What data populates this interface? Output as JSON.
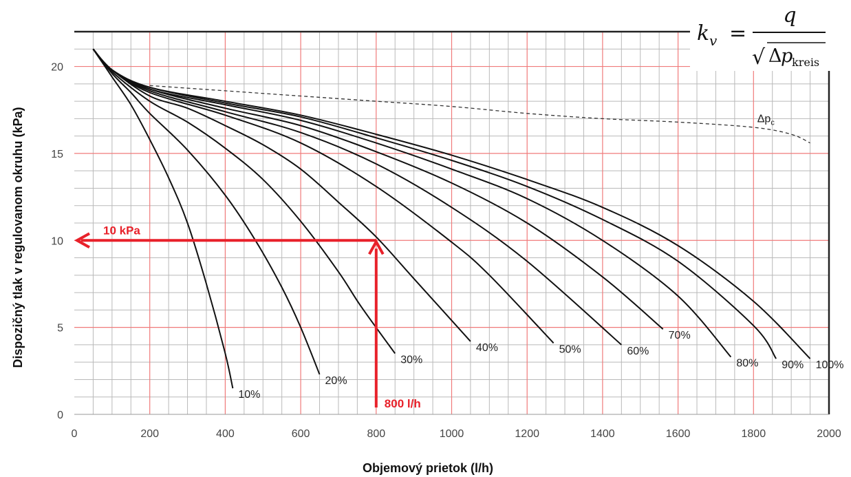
{
  "chart_data": {
    "type": "line",
    "title": "",
    "xlabel": "Objemový prietok (l/h)",
    "ylabel": "Dispozičný tlak v regulovanom okruhu (kPa)",
    "xlim": [
      0,
      2000
    ],
    "ylim": [
      0,
      22
    ],
    "x_ticks": [
      "0",
      "200",
      "400",
      "600",
      "800",
      "1000",
      "1200",
      "1400",
      "1600",
      "1800",
      "2000"
    ],
    "y_ticks": [
      "0",
      "5",
      "10",
      "15",
      "20"
    ],
    "grid": true,
    "series": [
      {
        "name": "10%",
        "x": [
          50,
          100,
          150,
          200,
          250,
          300,
          350,
          400,
          420
        ],
        "y": [
          21,
          19.4,
          17.8,
          15.8,
          13.6,
          11.0,
          7.5,
          3.5,
          1.5
        ]
      },
      {
        "name": "20%",
        "x": [
          50,
          100,
          150,
          200,
          300,
          400,
          480,
          550,
          600,
          650
        ],
        "y": [
          21,
          19.6,
          18.5,
          17.3,
          15.2,
          12.6,
          10.0,
          7.3,
          5.0,
          2.3
        ]
      },
      {
        "name": "30%",
        "x": [
          50,
          100,
          200,
          300,
          400,
          500,
          600,
          700,
          760,
          850
        ],
        "y": [
          21,
          19.7,
          18.0,
          16.8,
          15.3,
          13.5,
          11.1,
          8.2,
          6.2,
          3.5
        ]
      },
      {
        "name": "40%",
        "x": [
          50,
          100,
          200,
          300,
          400,
          500,
          600,
          700,
          800,
          900,
          1050
        ],
        "y": [
          21,
          19.8,
          18.3,
          17.6,
          16.6,
          15.5,
          14.1,
          12.2,
          10.2,
          7.8,
          4.2
        ]
      },
      {
        "name": "50%",
        "x": [
          50,
          100,
          200,
          400,
          600,
          800,
          1000,
          1100,
          1270
        ],
        "y": [
          21,
          19.8,
          18.5,
          17.2,
          15.6,
          13.1,
          9.9,
          8.0,
          4.1
        ]
      },
      {
        "name": "60%",
        "x": [
          50,
          100,
          200,
          400,
          600,
          800,
          1000,
          1200,
          1450
        ],
        "y": [
          21,
          19.8,
          18.6,
          17.4,
          16.2,
          14.4,
          11.9,
          8.8,
          4.0
        ]
      },
      {
        "name": "70%",
        "x": [
          50,
          100,
          200,
          400,
          600,
          800,
          1000,
          1200,
          1400,
          1560
        ],
        "y": [
          21,
          19.8,
          18.7,
          17.6,
          16.6,
          15.1,
          13.3,
          11.0,
          7.9,
          4.9
        ]
      },
      {
        "name": "80%",
        "x": [
          50,
          100,
          200,
          400,
          600,
          800,
          1000,
          1200,
          1400,
          1600,
          1740
        ],
        "y": [
          21,
          19.8,
          18.7,
          17.8,
          16.9,
          15.6,
          14.1,
          12.4,
          10.0,
          6.8,
          3.3
        ]
      },
      {
        "name": "90%",
        "x": [
          50,
          100,
          200,
          400,
          600,
          800,
          1000,
          1200,
          1400,
          1600,
          1800,
          1860
        ],
        "y": [
          21,
          19.8,
          18.8,
          17.9,
          17.1,
          15.9,
          14.6,
          13.1,
          11.2,
          8.8,
          5.1,
          3.2
        ]
      },
      {
        "name": "100%",
        "x": [
          50,
          100,
          200,
          400,
          600,
          800,
          1000,
          1200,
          1400,
          1600,
          1800,
          1950
        ],
        "y": [
          21,
          19.8,
          18.8,
          18.0,
          17.2,
          16.1,
          14.9,
          13.5,
          11.9,
          9.7,
          6.5,
          3.2
        ]
      },
      {
        "name": "Δp",
        "subscript": "c",
        "style": "dashed",
        "x": [
          200,
          400,
          600,
          800,
          1000,
          1200,
          1400,
          1600,
          1800,
          1900,
          1950
        ],
        "y": [
          18.9,
          18.6,
          18.3,
          18.0,
          17.7,
          17.3,
          17.0,
          16.8,
          16.5,
          16.1,
          15.6
        ]
      }
    ],
    "annotations": {
      "reading_point": {
        "x": 800,
        "y": 10
      },
      "pressure_label": "10 kPa",
      "flow_label": "800 l/h",
      "color": "#e8212a"
    },
    "formula": {
      "lhs": "k",
      "lhs_sub": "v",
      "equals": "=",
      "numerator": "q",
      "root_symbol": "√",
      "delta": "Δ",
      "p": "p",
      "p_sub": "kreis"
    }
  }
}
